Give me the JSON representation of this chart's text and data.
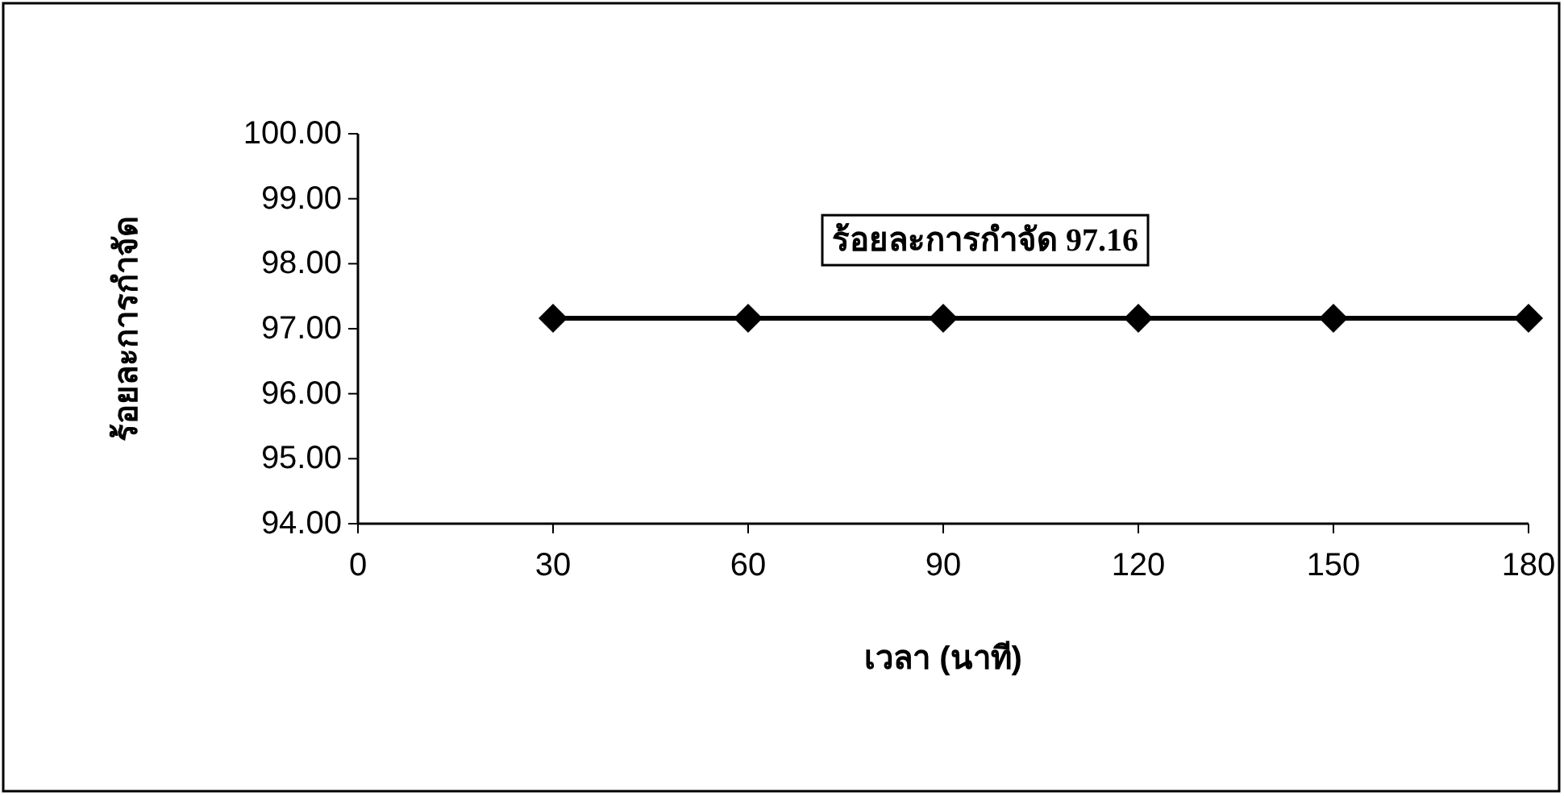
{
  "chart_data": {
    "type": "line",
    "xlabel": "เวลา (นาที)",
    "ylabel": "ร้อยละการกำจัด",
    "x": [
      30,
      60,
      90,
      120,
      150,
      180
    ],
    "series": [
      {
        "color": "#000000",
        "values": [
          97.16,
          97.16,
          97.16,
          97.16,
          97.16,
          97.16
        ]
      }
    ],
    "xlim": [
      0,
      180
    ],
    "xticks": [
      0,
      30,
      60,
      90,
      120,
      150,
      180
    ],
    "ylim": [
      94,
      100
    ],
    "yticks": [
      {
        "value": 94,
        "label": "94.00"
      },
      {
        "value": 95,
        "label": "95.00"
      },
      {
        "value": 96,
        "label": "96.00"
      },
      {
        "value": 97,
        "label": "97.00"
      },
      {
        "value": 98,
        "label": "98.00"
      },
      {
        "value": 99,
        "label": "99.00"
      },
      {
        "value": 100,
        "label": "100.00"
      }
    ],
    "marker": "diamond",
    "line_style": "solid",
    "grid": false,
    "annotations": [
      "ร้อยละการกำจัด 97.16"
    ]
  }
}
